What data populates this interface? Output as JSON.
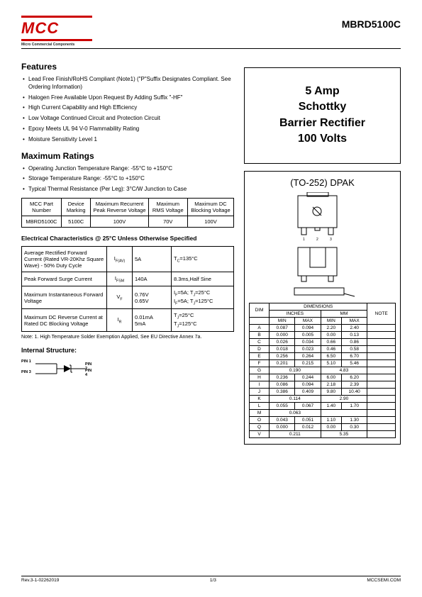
{
  "header": {
    "logo_text": "MCC",
    "logo_sub": "Micro Commercial Components",
    "part_number": "MBRD5100C"
  },
  "title_box": {
    "line1": "5 Amp",
    "line2": "Schottky",
    "line3": "Barrier Rectifier",
    "line4": "100 Volts"
  },
  "features": {
    "heading": "Features",
    "items": [
      "Lead Free Finish/RoHS Compliant (Note1) (\"P\"Suffix Designates Compliant. See Ordering Information)",
      "Halogen Free Available Upon Request By Adding Suffix \"-HF\"",
      "High Current Capability and High Efficiency",
      "Low Voltage Continued Circuit and Protection Circuit",
      "Epoxy Meets UL 94 V-0 Flammability Rating",
      "Moisture Sensitivity Level 1"
    ]
  },
  "max_ratings": {
    "heading": "Maximum Ratings",
    "bullets": [
      "Operating Junction Temperature Range: -55°C to +150°C",
      "Storage Temperature Range: -55°C to +150°C",
      "Typical Thermal Resistance (Per Leg): 3°C/W Junction to Case"
    ],
    "table": {
      "headers": [
        "MCC Part Number",
        "Device Marking",
        "Maximum Recurrent Peak Reverse Voltage",
        "Maximum RMS Voltage",
        "Maximum DC Blocking Voltage"
      ],
      "row": [
        "MBRD5100C",
        "5100C",
        "100V",
        "70V",
        "100V"
      ]
    }
  },
  "elec": {
    "heading": "Electrical Characteristics @ 25°C Unless Otherwise Specified",
    "rows": [
      {
        "param": "Average Rectified Forward Current (Rated VR-20Khz Square Wave) - 50% Duty Cycle",
        "sym": "I<sub>F(AV)</sub>",
        "val": "5A",
        "cond": "T<sub>C</sub>=135°C"
      },
      {
        "param": "Peak Forward Surge Current",
        "sym": "I<sub>FSM</sub>",
        "val": "140A",
        "cond": "8.3ms,Half Sine"
      },
      {
        "param": "Maximum Instantaneous Forward Voltage",
        "sym": "V<sub>F</sub>",
        "val": "0.76V<br>0.65V",
        "cond": "I<sub>F</sub>=5A; T<sub>J</sub>=25°C<br>I<sub>F</sub>=5A; T<sub>J</sub>=125°C"
      },
      {
        "param": "Maximum DC Reverse Current at Rated DC Blocking Voltage",
        "sym": "I<sub>R</sub>",
        "val": "0.01mA<br>5mA",
        "cond": "T<sub>J</sub>=25°C<br>T<sub>J</sub>=125°C"
      }
    ],
    "note": "Note: 1. High Temperature Solder Exemption Applied, See EU Directive Annex 7a."
  },
  "internal": {
    "heading": "Internal Structure:",
    "pin1": "PIN 1",
    "pin3": "PIN 3",
    "pin2": "PIN 2",
    "pin4": "PIN 4"
  },
  "package": {
    "title": "(TO-252) DPAK"
  },
  "dims": {
    "header_main": "DIMENSIONS",
    "col_dim": "DIM",
    "col_in": "INCHES",
    "col_mm": "MM",
    "col_note": "NOTE",
    "col_min": "MIN",
    "col_max": "MAX",
    "rows": [
      [
        "A",
        "0.087",
        "0.094",
        "2.20",
        "2.40",
        ""
      ],
      [
        "B",
        "0.000",
        "0.005",
        "0.00",
        "0.13",
        ""
      ],
      [
        "C",
        "0.026",
        "0.034",
        "0.66",
        "0.86",
        ""
      ],
      [
        "D",
        "0.018",
        "0.023",
        "0.46",
        "0.58",
        ""
      ],
      [
        "E",
        "0.256",
        "0.264",
        "6.50",
        "6.70",
        ""
      ],
      [
        "F",
        "0.201",
        "0.215",
        "5.10",
        "5.46",
        ""
      ],
      [
        "G",
        "0.190",
        "",
        "4.83",
        "",
        ""
      ],
      [
        "H",
        "0.236",
        "0.244",
        "6.00",
        "6.20",
        ""
      ],
      [
        "I",
        "0.086",
        "0.094",
        "2.18",
        "2.39",
        ""
      ],
      [
        "J",
        "0.386",
        "0.409",
        "9.80",
        "10.40",
        ""
      ],
      [
        "K",
        "0.114",
        "",
        "2.90",
        "",
        ""
      ],
      [
        "L",
        "0.055",
        "0.067",
        "1.40",
        "1.70",
        ""
      ],
      [
        "M",
        "0.063",
        "",
        "",
        "",
        ""
      ],
      [
        "O",
        "0.043",
        "0.051",
        "1.10",
        "1.30",
        ""
      ],
      [
        "Q",
        "0.000",
        "0.012",
        "0.00",
        "0.30",
        ""
      ],
      [
        "V",
        "0.211",
        "",
        "5.35",
        "",
        ""
      ]
    ]
  },
  "footer": {
    "rev": "Rev.3-1-02262019",
    "page": "1/3",
    "site": "MCCSEMI.COM"
  }
}
